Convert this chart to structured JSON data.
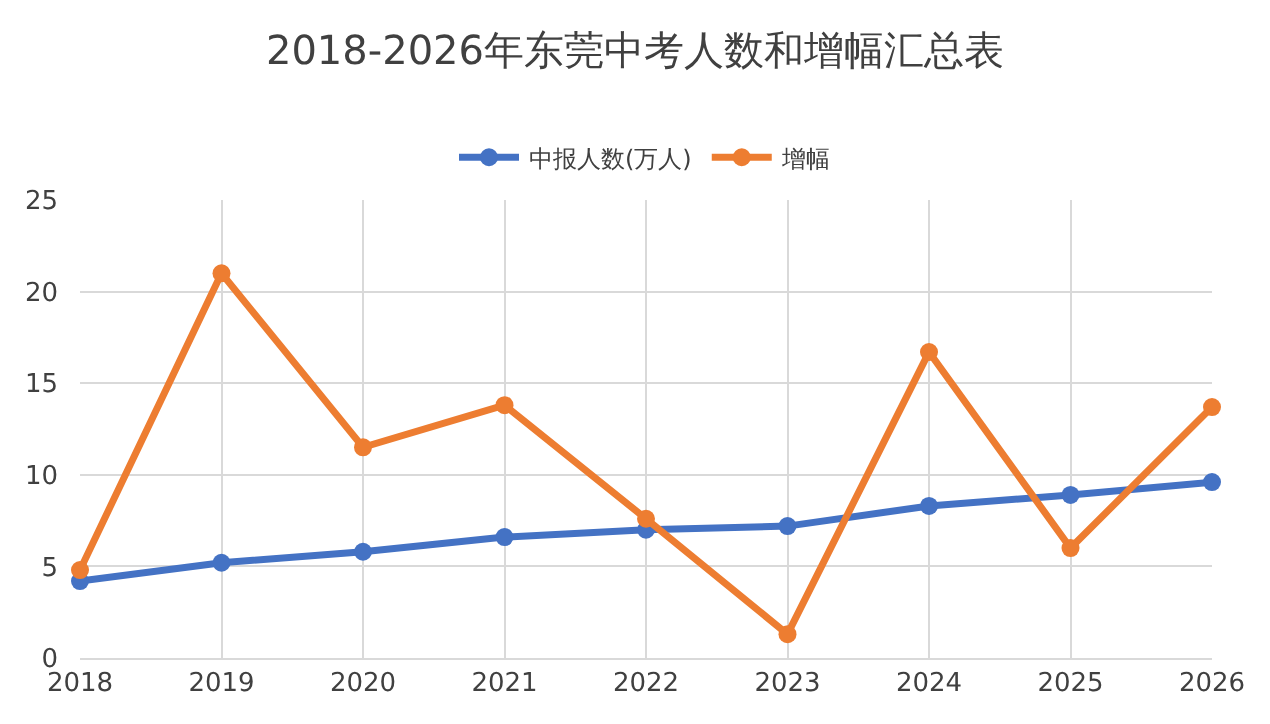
{
  "chart_data": {
    "type": "line",
    "title": "2018-2026年东莞中考人数和增幅汇总表",
    "x": [
      2018,
      2019,
      2020,
      2021,
      2022,
      2023,
      2024,
      2025,
      2026
    ],
    "series": [
      {
        "name": "中报人数(万人)",
        "color": "#4472c4",
        "values": [
          4.2,
          5.2,
          5.8,
          6.6,
          7.0,
          7.2,
          8.3,
          8.9,
          9.6
        ]
      },
      {
        "name": "增幅",
        "color": "#ed7d31",
        "values": [
          4.8,
          21,
          11.5,
          13.8,
          7.6,
          1.3,
          16.7,
          6.0,
          13.7
        ]
      }
    ],
    "xlim": [
      2018,
      2026
    ],
    "xticks": [
      2018,
      2019,
      2020,
      2021,
      2022,
      2023,
      2024,
      2025,
      2026
    ],
    "ylim": [
      0,
      25
    ],
    "yticks": [
      0,
      5,
      10,
      15,
      20,
      25
    ],
    "grid": true,
    "legend": "top",
    "marker": "circle",
    "line_style": "solid"
  }
}
